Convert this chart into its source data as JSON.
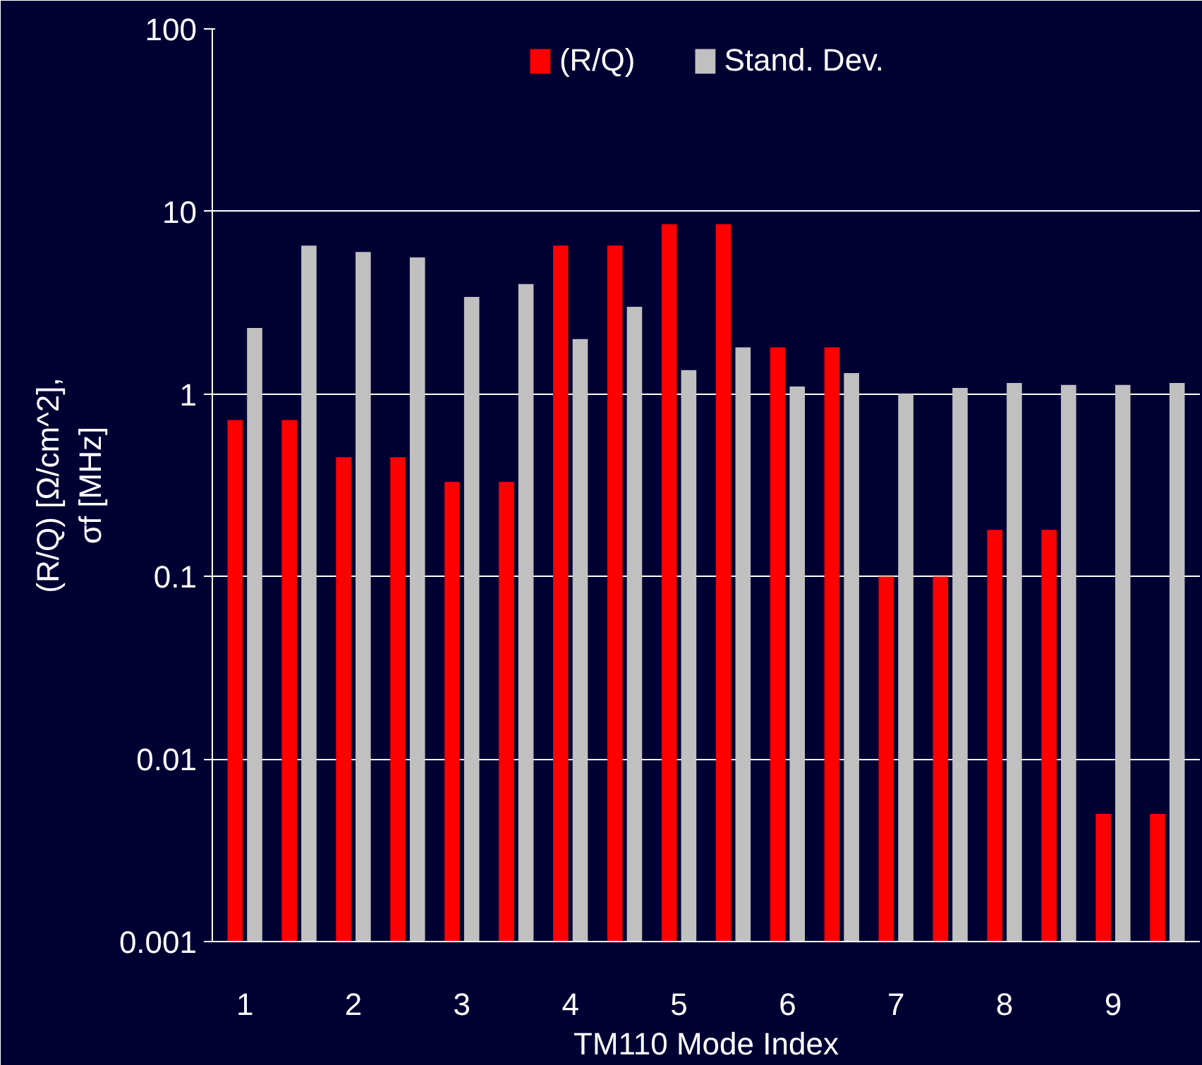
{
  "chart_data": {
    "type": "bar",
    "xlabel": "TM110 Mode Index",
    "ylabel": "(R/Q) [Ω/cm^2],\nσf [MHz]",
    "categories": [
      "1",
      null,
      "2",
      null,
      "3",
      null,
      "4",
      null,
      "5",
      null,
      "6",
      null,
      "7",
      null,
      "8",
      null,
      "9",
      null
    ],
    "series": [
      {
        "name": "(R/Q)",
        "color": "#ff0000",
        "values": [
          0.72,
          0.72,
          0.45,
          0.45,
          0.33,
          0.33,
          6.5,
          6.5,
          8.5,
          8.5,
          1.8,
          1.8,
          0.1,
          0.1,
          0.18,
          0.18,
          0.005,
          0.005
        ]
      },
      {
        "name": "Stand. Dev.",
        "color": "#c0c0c0",
        "values": [
          2.3,
          6.5,
          6.0,
          5.6,
          3.4,
          4.0,
          2.0,
          3.0,
          1.35,
          1.8,
          1.1,
          1.3,
          1.0,
          1.08,
          1.15,
          1.12,
          1.12,
          1.15
        ]
      }
    ],
    "log": true,
    "ylim": [
      0.001,
      100
    ],
    "yticks": [
      0.001,
      0.01,
      0.1,
      1,
      10,
      100
    ],
    "grid": "y",
    "legend": "top"
  }
}
